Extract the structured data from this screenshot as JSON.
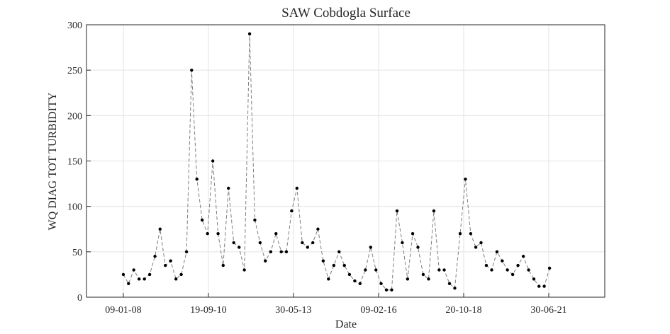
{
  "chart_data": {
    "type": "line",
    "title": "SAW Cobdogla Surface",
    "x_label": "Date",
    "y_label": "WQ DIAG TOT TURBIDITY",
    "x": [
      "2008-01-09",
      "2008-03-09",
      "2008-05-09",
      "2008-07-09",
      "2008-09-09",
      "2008-11-09",
      "2009-01-09",
      "2009-03-09",
      "2009-05-09",
      "2009-07-09",
      "2009-09-09",
      "2009-11-09",
      "2010-01-09",
      "2010-03-09",
      "2010-05-09",
      "2010-07-09",
      "2010-09-09",
      "2010-11-09",
      "2011-01-09",
      "2011-03-09",
      "2011-05-09",
      "2011-07-09",
      "2011-09-09",
      "2011-11-09",
      "2012-01-09",
      "2012-03-09",
      "2012-05-09",
      "2012-07-09",
      "2012-09-09",
      "2012-11-09",
      "2013-01-09",
      "2013-03-09",
      "2013-05-09",
      "2013-07-09",
      "2013-09-09",
      "2013-11-09",
      "2014-01-09",
      "2014-03-09",
      "2014-05-09",
      "2014-07-09",
      "2014-09-09",
      "2014-11-09",
      "2015-01-09",
      "2015-03-09",
      "2015-05-09",
      "2015-07-09",
      "2015-09-09",
      "2015-11-09",
      "2016-01-09",
      "2016-03-09",
      "2016-05-09",
      "2016-07-09",
      "2016-09-09",
      "2016-11-09",
      "2017-01-09",
      "2017-03-09",
      "2017-05-09",
      "2017-07-09",
      "2017-09-09",
      "2017-11-09",
      "2018-01-09",
      "2018-03-09",
      "2018-05-09",
      "2018-07-09",
      "2018-09-09",
      "2018-11-09",
      "2019-01-09",
      "2019-03-09",
      "2019-05-09",
      "2019-07-09",
      "2019-09-09",
      "2019-11-09",
      "2020-01-09",
      "2020-03-09",
      "2020-05-09",
      "2020-07-09",
      "2020-09-09",
      "2020-11-09",
      "2021-01-09",
      "2021-03-09",
      "2021-05-09",
      "2021-07-09"
    ],
    "series": [
      {
        "name": "WQ DIAG TOT TURBIDITY",
        "color": "#000000",
        "line_color": "#7f7f7f",
        "values": [
          25,
          15,
          30,
          20,
          20,
          25,
          45,
          75,
          35,
          40,
          20,
          25,
          50,
          250,
          130,
          85,
          70,
          150,
          70,
          35,
          120,
          60,
          55,
          30,
          290,
          85,
          60,
          40,
          50,
          70,
          50,
          50,
          95,
          120,
          60,
          55,
          60,
          75,
          40,
          20,
          35,
          50,
          35,
          25,
          18,
          15,
          30,
          55,
          30,
          15,
          8,
          8,
          95,
          60,
          20,
          70,
          55,
          25,
          20,
          95,
          30,
          30,
          15,
          10,
          70,
          130,
          70,
          55,
          60,
          35,
          30,
          50,
          40,
          30,
          25,
          35,
          45,
          30,
          20,
          12,
          12,
          32
        ]
      }
    ],
    "xlim": [
      "2006-11-09",
      "2023-04-09"
    ],
    "xticks": [
      {
        "value": "2008-01-09",
        "label": "09-01-08"
      },
      {
        "value": "2010-09-19",
        "label": "19-09-10"
      },
      {
        "value": "2013-05-30",
        "label": "30-05-13"
      },
      {
        "value": "2016-02-09",
        "label": "09-02-16"
      },
      {
        "value": "2018-10-20",
        "label": "20-10-18"
      },
      {
        "value": "2021-06-30",
        "label": "30-06-21"
      }
    ],
    "ylim": [
      0,
      300
    ],
    "yticks": [
      0,
      50,
      100,
      150,
      200,
      250,
      300
    ],
    "grid": true
  }
}
